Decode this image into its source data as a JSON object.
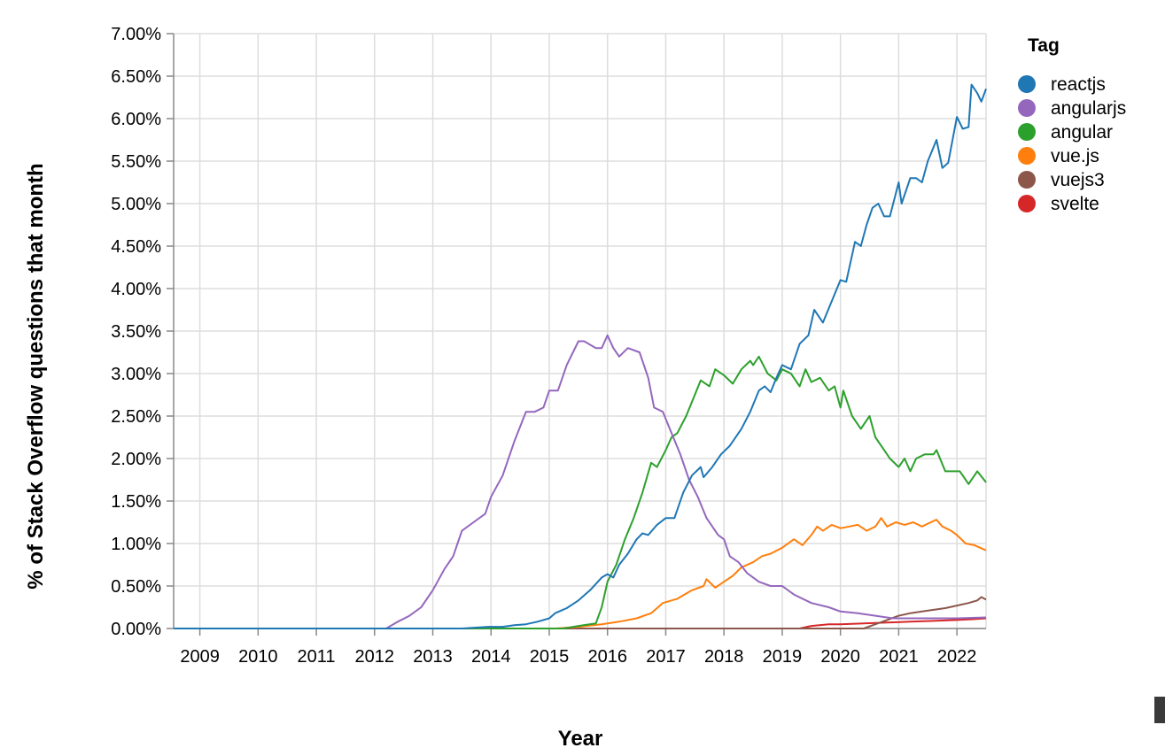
{
  "chart_data": {
    "type": "line",
    "title": "",
    "xlabel": "Year",
    "ylabel": "% of Stack Overflow questions that month",
    "xlim": [
      2008.55,
      2022.5
    ],
    "ylim": [
      0,
      7.0
    ],
    "x_ticks": [
      2009,
      2010,
      2011,
      2012,
      2013,
      2014,
      2015,
      2016,
      2017,
      2018,
      2019,
      2020,
      2021,
      2022
    ],
    "x_tick_labels": [
      "2009",
      "2010",
      "2011",
      "2012",
      "2013",
      "2014",
      "2015",
      "2016",
      "2017",
      "2018",
      "2019",
      "2020",
      "2021",
      "2022"
    ],
    "y_ticks": [
      0,
      0.5,
      1.0,
      1.5,
      2.0,
      2.5,
      3.0,
      3.5,
      4.0,
      4.5,
      5.0,
      5.5,
      6.0,
      6.5,
      7.0
    ],
    "y_tick_labels": [
      "0.00%",
      "0.50%",
      "1.00%",
      "1.50%",
      "2.00%",
      "2.50%",
      "3.00%",
      "3.50%",
      "4.00%",
      "4.50%",
      "5.00%",
      "5.50%",
      "6.00%",
      "6.50%",
      "7.00%"
    ],
    "grid": true,
    "legend": {
      "title": "Tag",
      "position": "right"
    },
    "series": [
      {
        "name": "reactjs",
        "color": "#1f77b4",
        "points": [
          [
            2008.55,
            0
          ],
          [
            2013.5,
            0
          ],
          [
            2013.95,
            0.02
          ],
          [
            2014.2,
            0.02
          ],
          [
            2014.4,
            0.04
          ],
          [
            2014.6,
            0.05
          ],
          [
            2014.8,
            0.08
          ],
          [
            2015.0,
            0.12
          ],
          [
            2015.1,
            0.18
          ],
          [
            2015.3,
            0.24
          ],
          [
            2015.5,
            0.33
          ],
          [
            2015.7,
            0.45
          ],
          [
            2015.9,
            0.6
          ],
          [
            2016.0,
            0.64
          ],
          [
            2016.1,
            0.6
          ],
          [
            2016.2,
            0.75
          ],
          [
            2016.35,
            0.88
          ],
          [
            2016.5,
            1.05
          ],
          [
            2016.6,
            1.12
          ],
          [
            2016.7,
            1.1
          ],
          [
            2016.85,
            1.22
          ],
          [
            2017.0,
            1.3
          ],
          [
            2017.15,
            1.3
          ],
          [
            2017.3,
            1.6
          ],
          [
            2017.45,
            1.8
          ],
          [
            2017.6,
            1.9
          ],
          [
            2017.65,
            1.78
          ],
          [
            2017.8,
            1.9
          ],
          [
            2017.95,
            2.05
          ],
          [
            2018.1,
            2.15
          ],
          [
            2018.3,
            2.35
          ],
          [
            2018.45,
            2.55
          ],
          [
            2018.6,
            2.8
          ],
          [
            2018.7,
            2.85
          ],
          [
            2018.8,
            2.78
          ],
          [
            2018.9,
            2.95
          ],
          [
            2019.0,
            3.1
          ],
          [
            2019.15,
            3.05
          ],
          [
            2019.3,
            3.35
          ],
          [
            2019.45,
            3.45
          ],
          [
            2019.55,
            3.75
          ],
          [
            2019.7,
            3.6
          ],
          [
            2019.85,
            3.85
          ],
          [
            2020.0,
            4.1
          ],
          [
            2020.1,
            4.08
          ],
          [
            2020.25,
            4.55
          ],
          [
            2020.35,
            4.5
          ],
          [
            2020.45,
            4.75
          ],
          [
            2020.55,
            4.95
          ],
          [
            2020.65,
            5.0
          ],
          [
            2020.75,
            4.85
          ],
          [
            2020.85,
            4.85
          ],
          [
            2021.0,
            5.25
          ],
          [
            2021.05,
            5.0
          ],
          [
            2021.2,
            5.3
          ],
          [
            2021.3,
            5.3
          ],
          [
            2021.4,
            5.25
          ],
          [
            2021.5,
            5.5
          ],
          [
            2021.65,
            5.75
          ],
          [
            2021.75,
            5.42
          ],
          [
            2021.85,
            5.48
          ],
          [
            2022.0,
            6.02
          ],
          [
            2022.1,
            5.88
          ],
          [
            2022.2,
            5.9
          ],
          [
            2022.25,
            6.4
          ],
          [
            2022.35,
            6.3
          ],
          [
            2022.42,
            6.2
          ],
          [
            2022.5,
            6.35
          ]
        ]
      },
      {
        "name": "angularjs",
        "color": "#9467bd",
        "points": [
          [
            2008.55,
            0
          ],
          [
            2012.2,
            0
          ],
          [
            2012.4,
            0.08
          ],
          [
            2012.6,
            0.15
          ],
          [
            2012.8,
            0.25
          ],
          [
            2013.0,
            0.45
          ],
          [
            2013.2,
            0.7
          ],
          [
            2013.35,
            0.85
          ],
          [
            2013.5,
            1.15
          ],
          [
            2013.7,
            1.25
          ],
          [
            2013.9,
            1.35
          ],
          [
            2014.0,
            1.55
          ],
          [
            2014.2,
            1.8
          ],
          [
            2014.4,
            2.2
          ],
          [
            2014.6,
            2.55
          ],
          [
            2014.75,
            2.55
          ],
          [
            2014.9,
            2.6
          ],
          [
            2015.0,
            2.8
          ],
          [
            2015.15,
            2.8
          ],
          [
            2015.3,
            3.1
          ],
          [
            2015.5,
            3.38
          ],
          [
            2015.6,
            3.38
          ],
          [
            2015.8,
            3.3
          ],
          [
            2015.9,
            3.3
          ],
          [
            2016.0,
            3.45
          ],
          [
            2016.1,
            3.3
          ],
          [
            2016.2,
            3.2
          ],
          [
            2016.35,
            3.3
          ],
          [
            2016.55,
            3.25
          ],
          [
            2016.7,
            2.95
          ],
          [
            2016.8,
            2.6
          ],
          [
            2016.95,
            2.55
          ],
          [
            2017.1,
            2.3
          ],
          [
            2017.25,
            2.05
          ],
          [
            2017.4,
            1.75
          ],
          [
            2017.55,
            1.55
          ],
          [
            2017.7,
            1.3
          ],
          [
            2017.9,
            1.1
          ],
          [
            2018.0,
            1.05
          ],
          [
            2018.1,
            0.85
          ],
          [
            2018.25,
            0.78
          ],
          [
            2018.4,
            0.65
          ],
          [
            2018.6,
            0.55
          ],
          [
            2018.8,
            0.5
          ],
          [
            2019.0,
            0.5
          ],
          [
            2019.2,
            0.4
          ],
          [
            2019.5,
            0.3
          ],
          [
            2019.8,
            0.25
          ],
          [
            2020.0,
            0.2
          ],
          [
            2020.3,
            0.18
          ],
          [
            2020.6,
            0.15
          ],
          [
            2020.9,
            0.12
          ],
          [
            2021.3,
            0.12
          ],
          [
            2021.7,
            0.12
          ],
          [
            2022.0,
            0.12
          ],
          [
            2022.5,
            0.13
          ]
        ]
      },
      {
        "name": "angular",
        "color": "#2ca02c",
        "points": [
          [
            2008.55,
            0
          ],
          [
            2015.25,
            0
          ],
          [
            2015.5,
            0.03
          ],
          [
            2015.8,
            0.06
          ],
          [
            2015.9,
            0.25
          ],
          [
            2016.0,
            0.55
          ],
          [
            2016.15,
            0.75
          ],
          [
            2016.3,
            1.05
          ],
          [
            2016.45,
            1.3
          ],
          [
            2016.6,
            1.6
          ],
          [
            2016.75,
            1.95
          ],
          [
            2016.85,
            1.9
          ],
          [
            2017.0,
            2.1
          ],
          [
            2017.1,
            2.25
          ],
          [
            2017.2,
            2.3
          ],
          [
            2017.35,
            2.5
          ],
          [
            2017.5,
            2.75
          ],
          [
            2017.6,
            2.92
          ],
          [
            2017.75,
            2.85
          ],
          [
            2017.85,
            3.05
          ],
          [
            2018.0,
            2.98
          ],
          [
            2018.15,
            2.88
          ],
          [
            2018.3,
            3.05
          ],
          [
            2018.45,
            3.15
          ],
          [
            2018.5,
            3.1
          ],
          [
            2018.6,
            3.2
          ],
          [
            2018.75,
            3.0
          ],
          [
            2018.9,
            2.92
          ],
          [
            2019.0,
            3.05
          ],
          [
            2019.15,
            3.0
          ],
          [
            2019.3,
            2.85
          ],
          [
            2019.4,
            3.05
          ],
          [
            2019.5,
            2.9
          ],
          [
            2019.65,
            2.95
          ],
          [
            2019.8,
            2.8
          ],
          [
            2019.9,
            2.85
          ],
          [
            2020.0,
            2.6
          ],
          [
            2020.05,
            2.8
          ],
          [
            2020.2,
            2.5
          ],
          [
            2020.35,
            2.35
          ],
          [
            2020.5,
            2.5
          ],
          [
            2020.6,
            2.25
          ],
          [
            2020.75,
            2.1
          ],
          [
            2020.85,
            2.0
          ],
          [
            2021.0,
            1.9
          ],
          [
            2021.1,
            2.0
          ],
          [
            2021.2,
            1.85
          ],
          [
            2021.3,
            2.0
          ],
          [
            2021.45,
            2.05
          ],
          [
            2021.6,
            2.05
          ],
          [
            2021.65,
            2.1
          ],
          [
            2021.8,
            1.85
          ],
          [
            2021.95,
            1.85
          ],
          [
            2022.05,
            1.85
          ],
          [
            2022.2,
            1.7
          ],
          [
            2022.35,
            1.85
          ],
          [
            2022.5,
            1.72
          ]
        ]
      },
      {
        "name": "vue.js",
        "color": "#ff7f0e",
        "points": [
          [
            2008.55,
            0
          ],
          [
            2015.1,
            0
          ],
          [
            2015.5,
            0.02
          ],
          [
            2015.9,
            0.05
          ],
          [
            2016.2,
            0.08
          ],
          [
            2016.5,
            0.12
          ],
          [
            2016.75,
            0.18
          ],
          [
            2016.95,
            0.3
          ],
          [
            2017.2,
            0.35
          ],
          [
            2017.45,
            0.45
          ],
          [
            2017.65,
            0.5
          ],
          [
            2017.7,
            0.58
          ],
          [
            2017.85,
            0.48
          ],
          [
            2018.0,
            0.55
          ],
          [
            2018.15,
            0.62
          ],
          [
            2018.3,
            0.72
          ],
          [
            2018.5,
            0.78
          ],
          [
            2018.65,
            0.85
          ],
          [
            2018.8,
            0.88
          ],
          [
            2019.0,
            0.95
          ],
          [
            2019.2,
            1.05
          ],
          [
            2019.35,
            0.98
          ],
          [
            2019.5,
            1.1
          ],
          [
            2019.6,
            1.2
          ],
          [
            2019.7,
            1.15
          ],
          [
            2019.85,
            1.22
          ],
          [
            2020.0,
            1.18
          ],
          [
            2020.15,
            1.2
          ],
          [
            2020.3,
            1.22
          ],
          [
            2020.45,
            1.15
          ],
          [
            2020.6,
            1.2
          ],
          [
            2020.7,
            1.3
          ],
          [
            2020.8,
            1.2
          ],
          [
            2020.95,
            1.25
          ],
          [
            2021.1,
            1.22
          ],
          [
            2021.25,
            1.25
          ],
          [
            2021.4,
            1.2
          ],
          [
            2021.55,
            1.25
          ],
          [
            2021.65,
            1.28
          ],
          [
            2021.75,
            1.2
          ],
          [
            2021.9,
            1.15
          ],
          [
            2022.0,
            1.1
          ],
          [
            2022.15,
            1.0
          ],
          [
            2022.3,
            0.98
          ],
          [
            2022.4,
            0.95
          ],
          [
            2022.5,
            0.92
          ]
        ]
      },
      {
        "name": "vuejs3",
        "color": "#8c564b",
        "points": [
          [
            2008.55,
            0
          ],
          [
            2020.4,
            0
          ],
          [
            2020.6,
            0.05
          ],
          [
            2020.8,
            0.1
          ],
          [
            2021.0,
            0.15
          ],
          [
            2021.2,
            0.18
          ],
          [
            2021.4,
            0.2
          ],
          [
            2021.6,
            0.22
          ],
          [
            2021.8,
            0.24
          ],
          [
            2022.0,
            0.27
          ],
          [
            2022.2,
            0.3
          ],
          [
            2022.35,
            0.33
          ],
          [
            2022.42,
            0.37
          ],
          [
            2022.5,
            0.34
          ]
        ]
      },
      {
        "name": "svelte",
        "color": "#d62728",
        "points": [
          [
            2008.55,
            0
          ],
          [
            2019.3,
            0
          ],
          [
            2019.5,
            0.03
          ],
          [
            2019.8,
            0.05
          ],
          [
            2020.0,
            0.05
          ],
          [
            2020.4,
            0.06
          ],
          [
            2020.8,
            0.07
          ],
          [
            2021.2,
            0.08
          ],
          [
            2021.6,
            0.09
          ],
          [
            2022.0,
            0.1
          ],
          [
            2022.3,
            0.11
          ],
          [
            2022.5,
            0.12
          ]
        ]
      }
    ]
  }
}
